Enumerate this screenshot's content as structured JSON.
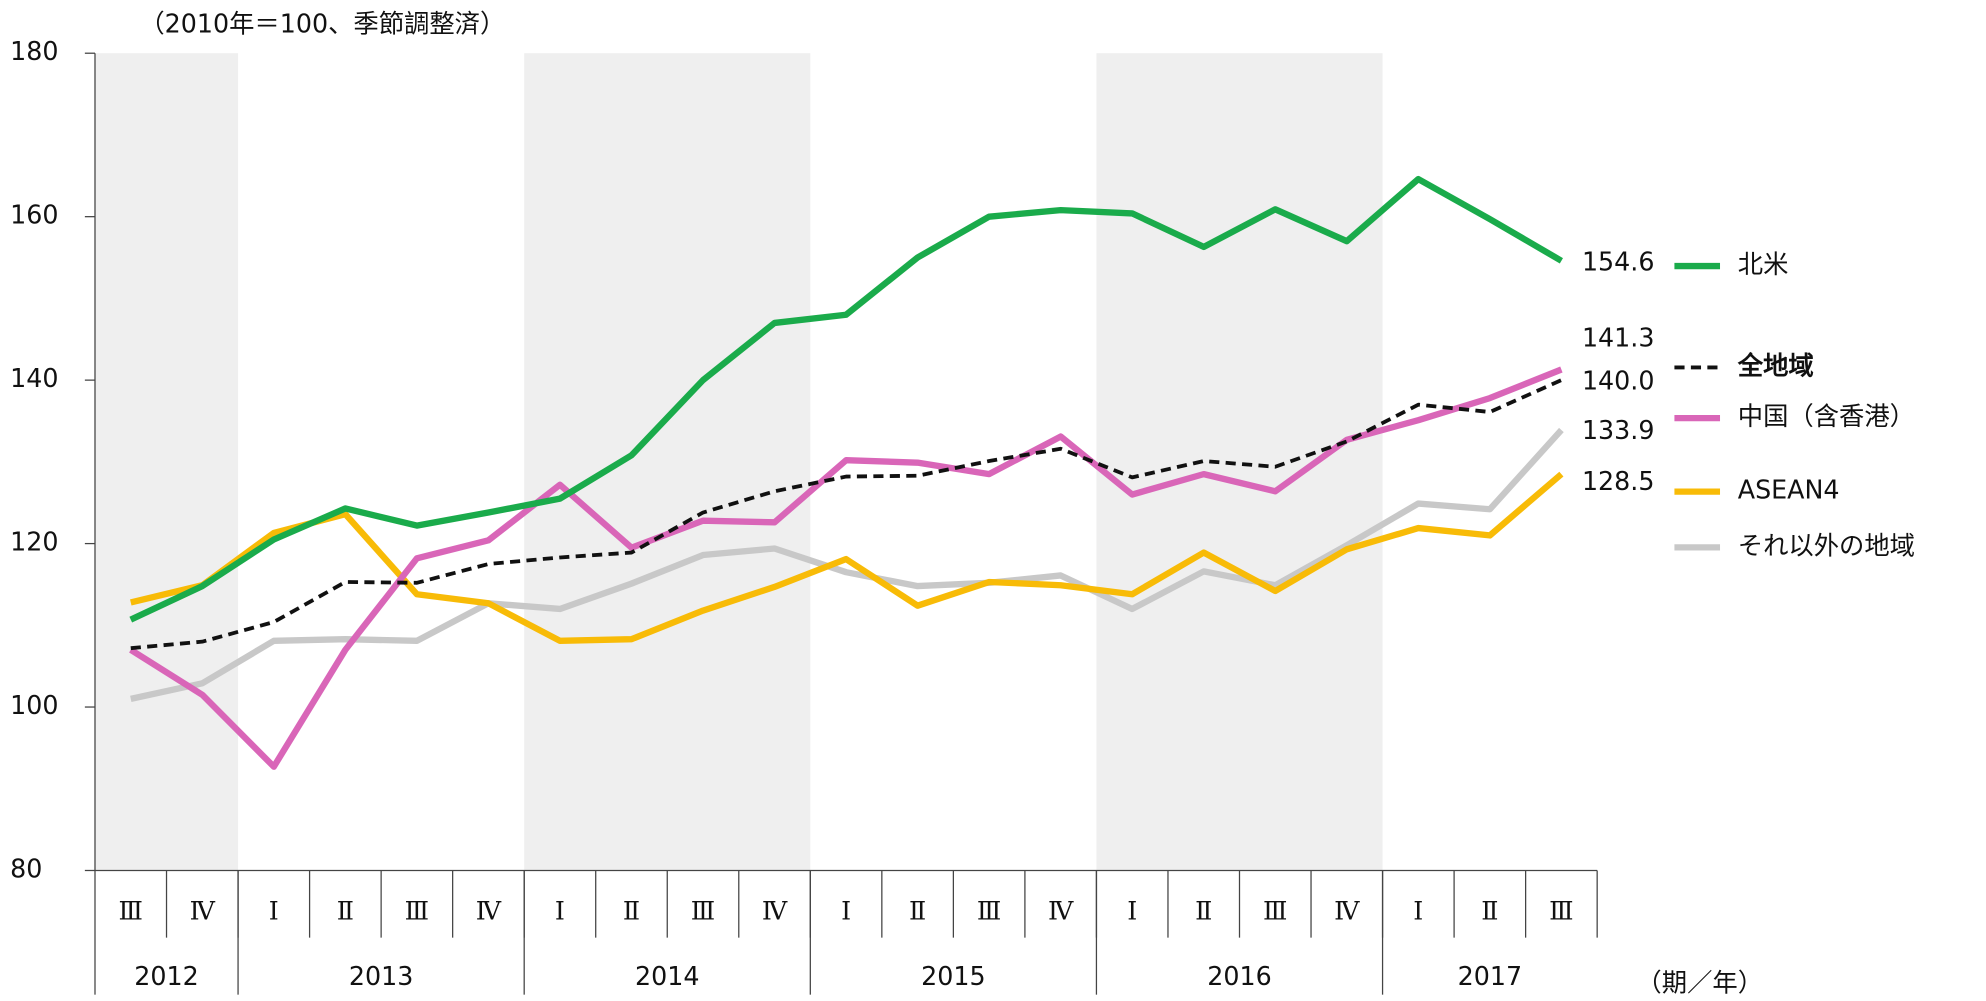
{
  "chart_data": {
    "type": "line",
    "annotations": [
      "（2010年＝100、季節調整済）",
      "（期／年）"
    ],
    "categories": [
      "Ⅲ",
      "Ⅳ",
      "Ⅰ",
      "Ⅱ",
      "Ⅲ",
      "Ⅳ",
      "Ⅰ",
      "Ⅱ",
      "Ⅲ",
      "Ⅳ",
      "Ⅰ",
      "Ⅱ",
      "Ⅲ",
      "Ⅳ",
      "Ⅰ",
      "Ⅱ",
      "Ⅲ",
      "Ⅳ",
      "Ⅰ",
      "Ⅱ",
      "Ⅲ"
    ],
    "groups": [
      {
        "name": "2012",
        "count": 2
      },
      {
        "name": "2013",
        "count": 4
      },
      {
        "name": "2014",
        "count": 4
      },
      {
        "name": "2015",
        "count": 4
      },
      {
        "name": "2016",
        "count": 4
      },
      {
        "name": "2017",
        "count": 3
      }
    ],
    "band_color": "#efefef",
    "ylim": [
      80,
      180
    ],
    "yticks": [
      80,
      100,
      120,
      140,
      160,
      180
    ],
    "series": [
      {
        "name": "北米",
        "color": "#1aab4b",
        "values": [
          110.7,
          114.8,
          120.5,
          124.3,
          122.2,
          123.8,
          125.5,
          130.8,
          140,
          147,
          148,
          155,
          160,
          160.8,
          160.4,
          156.3,
          160.9,
          157,
          164.6,
          159.7,
          154.6
        ],
        "value_labels": [
          null,
          null,
          null,
          null,
          null,
          null,
          null,
          null,
          null,
          null,
          null,
          null,
          null,
          null,
          null,
          null,
          null,
          null,
          null,
          null,
          "154.6"
        ]
      },
      {
        "name": "全地域",
        "color": "#111111",
        "dashed": true,
        "bold": true,
        "values": [
          107.2,
          108,
          110.4,
          115.3,
          115.2,
          117.5,
          118.3,
          118.9,
          123.8,
          126.4,
          128.2,
          128.3,
          130.1,
          131.6,
          128.1,
          130.1,
          129.4,
          132.5,
          137,
          136.1,
          140
        ],
        "value_labels": [
          null,
          null,
          null,
          null,
          null,
          null,
          null,
          null,
          null,
          null,
          null,
          null,
          null,
          null,
          null,
          null,
          null,
          null,
          null,
          null,
          "140.0"
        ]
      },
      {
        "name": "中国（含香港）",
        "color": "#d966b8",
        "values": [
          107,
          101.5,
          92.7,
          107,
          118.2,
          120.4,
          127.2,
          119.5,
          122.8,
          122.6,
          130.2,
          129.9,
          128.5,
          133.1,
          126,
          128.5,
          126.4,
          132.7,
          135.1,
          137.8,
          141.3
        ],
        "value_labels": [
          null,
          null,
          null,
          null,
          null,
          null,
          null,
          null,
          null,
          null,
          null,
          null,
          null,
          null,
          null,
          null,
          null,
          null,
          null,
          null,
          "141.3"
        ]
      },
      {
        "name": "ASEAN4",
        "color": "#f8bb07",
        "values": [
          112.8,
          114.9,
          121.3,
          123.6,
          113.8,
          112.7,
          108.1,
          108.3,
          111.8,
          114.7,
          118.1,
          112.4,
          115.3,
          114.9,
          113.8,
          118.9,
          114.2,
          119.3,
          121.9,
          121,
          128.5
        ],
        "value_labels": [
          null,
          null,
          null,
          null,
          null,
          null,
          null,
          null,
          null,
          null,
          null,
          null,
          null,
          null,
          null,
          null,
          null,
          null,
          null,
          null,
          "128.5"
        ]
      },
      {
        "name": "それ以外の地域",
        "color": "#c8c8c8",
        "values": [
          101,
          102.9,
          108.1,
          108.3,
          108.1,
          112.7,
          112,
          115.1,
          118.6,
          119.4,
          116.5,
          114.8,
          115.2,
          116.1,
          112,
          116.6,
          114.9,
          119.8,
          124.9,
          124.2,
          133.9
        ],
        "value_labels": [
          null,
          null,
          null,
          null,
          null,
          null,
          null,
          null,
          null,
          null,
          null,
          null,
          null,
          null,
          null,
          null,
          null,
          null,
          null,
          null,
          "133.9"
        ]
      }
    ]
  }
}
